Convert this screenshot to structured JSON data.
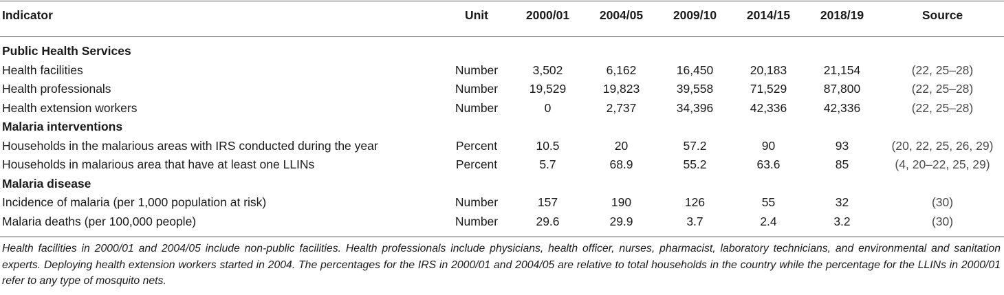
{
  "table": {
    "headers": [
      "Indicator",
      "Unit",
      "2000/01",
      "2004/05",
      "2009/10",
      "2014/15",
      "2018/19",
      "Source"
    ],
    "sections": [
      {
        "title": "Public Health Services",
        "rows": [
          {
            "indicator": "Health facilities",
            "unit": "Number",
            "values": [
              "3,502",
              "6,162",
              "16,450",
              "20,183",
              "21,154"
            ],
            "source": "(22, 25–28)"
          },
          {
            "indicator": "Health professionals",
            "unit": "Number",
            "values": [
              "19,529",
              "19,823",
              "39,558",
              "71,529",
              "87,800"
            ],
            "source": "(22, 25–28)"
          },
          {
            "indicator": "Health extension workers",
            "unit": "Number",
            "values": [
              "0",
              "2,737",
              "34,396",
              "42,336",
              "42,336"
            ],
            "source": "(22, 25–28)"
          }
        ]
      },
      {
        "title": "Malaria interventions",
        "rows": [
          {
            "indicator": "Households in the malarious areas with IRS conducted during the year",
            "unit": "Percent",
            "values": [
              "10.5",
              "20",
              "57.2",
              "90",
              "93"
            ],
            "source": "(20, 22, 25, 26, 29)"
          },
          {
            "indicator": "Households in malarious area that have at least one LLINs",
            "unit": "Percent",
            "values": [
              "5.7",
              "68.9",
              "55.2",
              "63.6",
              "85"
            ],
            "source": "(4, 20–22, 25, 29)"
          }
        ]
      },
      {
        "title": "Malaria disease",
        "rows": [
          {
            "indicator": "Incidence of malaria (per 1,000 population at risk)",
            "unit": "Number",
            "values": [
              "157",
              "190",
              "126",
              "55",
              "32"
            ],
            "source": "(30)"
          },
          {
            "indicator": "Malaria deaths (per 100,000 people)",
            "unit": "Number",
            "values": [
              "29.6",
              "29.9",
              "3.7",
              "2.4",
              "3.2"
            ],
            "source": "(30)"
          }
        ]
      }
    ]
  },
  "footnote": "Health facilities in 2000/01 and 2004/05 include non-public facilities. Health professionals include physicians, health officer, nurses, pharmacist, laboratory technicians, and environmental and sanitation experts. Deploying health extension workers started in 2004. The percentages for the IRS in 2000/01 and 2004/05 are relative to total households in the country while the percentage for the LLINs in 2000/01 refer to any type of mosquito nets."
}
